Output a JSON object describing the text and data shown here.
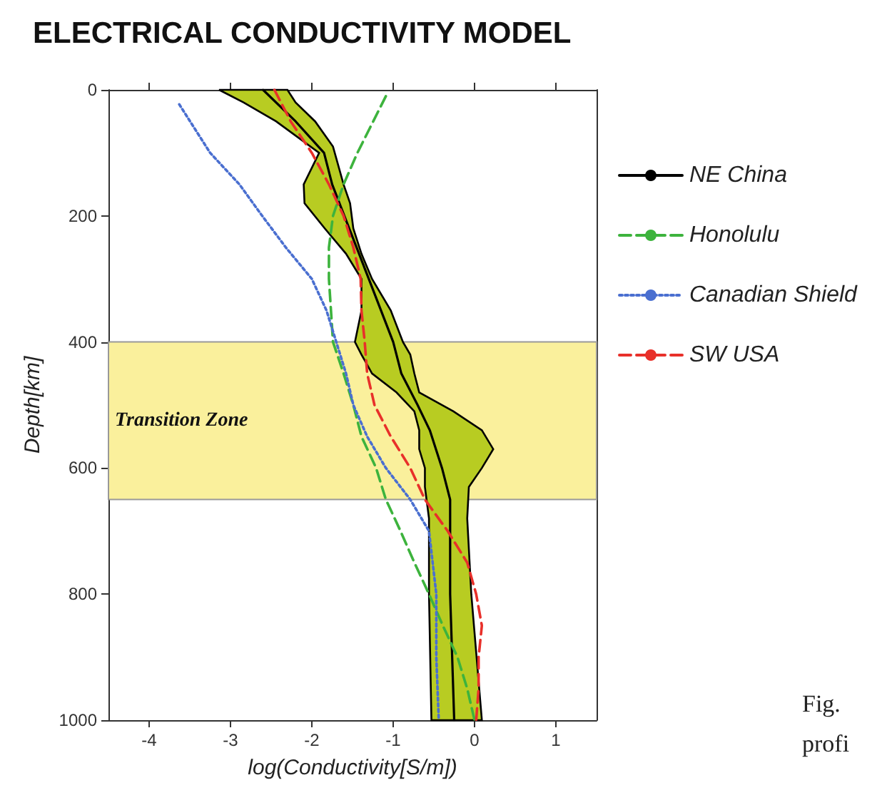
{
  "chart_data": {
    "type": "line",
    "title": "ELECTRICAL CONDUCTIVITY MODEL",
    "xlabel": "log(Conductivity[S/m])",
    "ylabel": "Depth[km]",
    "xlim": [
      -4.5,
      1.5
    ],
    "xticks": [
      -4,
      -3,
      -2,
      -1,
      0,
      1
    ],
    "ylim": [
      1000,
      0
    ],
    "yticks": [
      0,
      200,
      400,
      600,
      800,
      1000
    ],
    "grid": false,
    "legend": "right",
    "bands": [
      {
        "axis": "y",
        "from": 400,
        "to": 650,
        "label": "Transition Zone",
        "color": "#faf09c"
      }
    ],
    "annotations": [
      "Fig.",
      "profi"
    ],
    "series": [
      {
        "type": "area",
        "color": "#b8cc22",
        "x": [
          -3.14,
          -2.84,
          -2.44,
          -1.91,
          -2.1,
          -2.09,
          -1.84,
          -1.58,
          -1.39,
          -1.39,
          -1.47,
          -1.39,
          -1.26,
          -0.96,
          -0.74,
          -0.68,
          -0.68,
          -0.61,
          -0.61,
          -0.56,
          -0.56,
          -0.53,
          0.09,
          -0.04,
          -0.09,
          -0.07,
          0.09,
          0.23,
          0.09,
          -0.26,
          -0.68,
          -0.74,
          -0.79,
          -0.88,
          -1.03,
          -1.26,
          -1.39,
          -1.49,
          -1.53,
          -1.61,
          -1.74,
          -1.96,
          -2.2,
          -2.3
        ],
        "values": [
          0,
          20,
          50,
          100,
          150,
          180,
          220,
          260,
          300,
          350,
          400,
          420,
          450,
          480,
          510,
          540,
          570,
          600,
          630,
          680,
          800,
          1000,
          1000,
          800,
          680,
          630,
          600,
          570,
          540,
          510,
          480,
          450,
          420,
          400,
          350,
          300,
          260,
          220,
          180,
          150,
          90,
          50,
          20,
          0
        ]
      },
      {
        "name": "NE China",
        "color": "#000000",
        "line_style": "solid",
        "x": [
          -2.6,
          -2.2,
          -1.85,
          -1.75,
          -1.6,
          -1.3,
          -1.0,
          -0.9,
          -0.7,
          -0.55,
          -0.4,
          -0.3,
          -0.3,
          -0.3,
          -0.25
        ],
        "values": [
          0,
          50,
          100,
          150,
          200,
          300,
          400,
          450,
          500,
          540,
          600,
          650,
          700,
          800,
          1000
        ]
      },
      {
        "name": "Honolulu",
        "color": "#3db33d",
        "line_style": "dashed",
        "x": [
          -1.09,
          -1.44,
          -1.61,
          -1.74,
          -1.79,
          -1.79,
          -1.74,
          -1.61,
          -1.49,
          -1.39,
          -1.21,
          -1.09,
          -0.91,
          -0.74,
          -0.56,
          -0.39,
          -0.21,
          -0.09,
          0
        ],
        "values": [
          10,
          100,
          150,
          200,
          250,
          300,
          400,
          450,
          500,
          550,
          600,
          650,
          700,
          750,
          800,
          850,
          900,
          950,
          1000
        ]
      },
      {
        "name": "Canadian Shield",
        "color": "#4a6fd0",
        "line_style": "dotted",
        "x": [
          -3.63,
          -3.25,
          -2.89,
          -2.61,
          -2.32,
          -2.0,
          -1.82,
          -1.7,
          -1.58,
          -1.49,
          -1.32,
          -1.09,
          -0.79,
          -0.56,
          -0.47,
          -0.47,
          -0.44
        ],
        "values": [
          23,
          100,
          150,
          200,
          250,
          300,
          350,
          400,
          450,
          500,
          550,
          600,
          650,
          700,
          800,
          900,
          1000
        ]
      },
      {
        "name": "SW USA",
        "color": "#e8302a",
        "line_style": "dashed",
        "x": [
          -2.46,
          -2.26,
          -2.0,
          -1.79,
          -1.61,
          -1.49,
          -1.4,
          -1.39,
          -1.35,
          -1.32,
          -1.23,
          -1.03,
          -0.79,
          -0.61,
          -0.33,
          -0.09,
          0.02,
          0.09,
          0.05,
          0.05,
          0.02
        ],
        "values": [
          0,
          50,
          100,
          150,
          200,
          250,
          300,
          350,
          400,
          450,
          500,
          550,
          600,
          650,
          700,
          750,
          800,
          850,
          900,
          950,
          1000
        ]
      }
    ]
  }
}
